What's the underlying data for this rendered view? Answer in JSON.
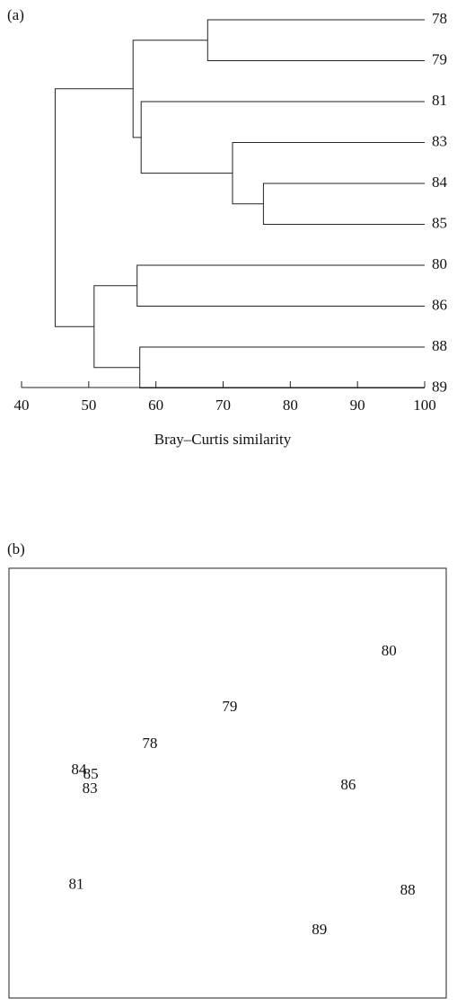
{
  "chart_data": [
    {
      "type": "dendrogram",
      "panel_label": "(a)",
      "leaves": [
        "78",
        "79",
        "81",
        "83",
        "84",
        "85",
        "80",
        "86",
        "88",
        "89"
      ],
      "merges": [
        {
          "children": [
            0,
            1
          ],
          "value": 67.7
        },
        {
          "children": [
            4,
            5
          ],
          "value": 76.0
        },
        {
          "children": [
            3,
            11
          ],
          "value": 71.4
        },
        {
          "children": [
            2,
            12
          ],
          "value": 57.8
        },
        {
          "children": [
            10,
            13
          ],
          "value": 56.6
        },
        {
          "children": [
            6,
            7
          ],
          "value": 57.2
        },
        {
          "children": [
            8,
            9
          ],
          "value": 57.6
        },
        {
          "children": [
            15,
            16
          ],
          "value": 50.8
        },
        {
          "children": [
            14,
            17
          ],
          "value": 45.0
        }
      ],
      "xlim": [
        40,
        100
      ],
      "xticks": [
        40,
        50,
        60,
        70,
        80,
        90,
        100
      ],
      "x_label": "Bray–Curtis similarity"
    },
    {
      "type": "scatter",
      "panel_label": "(b)",
      "labels": [
        "80",
        "79",
        "78",
        "84",
        "85",
        "83",
        "86",
        "81",
        "88",
        "89"
      ],
      "x": [
        86.9,
        50.5,
        32.2,
        16.0,
        18.7,
        18.5,
        77.6,
        15.4,
        91.2,
        71.0
      ],
      "y": [
        80.5,
        67.6,
        59.0,
        52.9,
        51.9,
        48.5,
        49.4,
        26.2,
        24.9,
        15.7
      ],
      "xlim": [
        0,
        100
      ],
      "ylim": [
        0,
        100
      ]
    }
  ]
}
